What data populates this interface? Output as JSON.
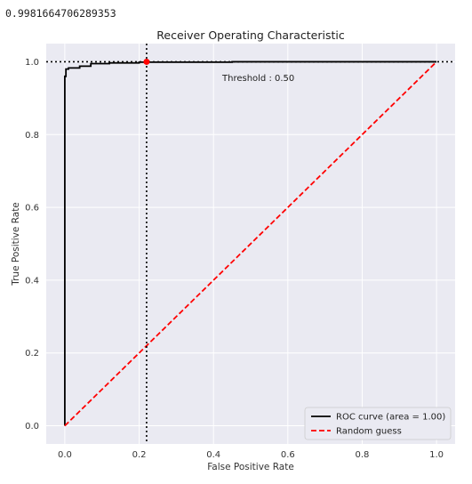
{
  "output": {
    "auc_printout": "0.9981664706289353"
  },
  "chart_data": {
    "type": "line",
    "title": "Receiver Operating Characteristic",
    "xlabel": "False Positive Rate",
    "ylabel": "True Positive Rate",
    "xlim": [
      -0.05,
      1.05
    ],
    "ylim": [
      -0.05,
      1.05
    ],
    "xticks": [
      0.0,
      0.2,
      0.4,
      0.6,
      0.8,
      1.0
    ],
    "yticks": [
      0.0,
      0.2,
      0.4,
      0.6,
      0.8,
      1.0
    ],
    "xtick_labels": [
      "0.0",
      "0.2",
      "0.4",
      "0.6",
      "0.8",
      "1.0"
    ],
    "ytick_labels": [
      "0.0",
      "0.2",
      "0.4",
      "0.6",
      "0.8",
      "1.0"
    ],
    "grid": true,
    "legend_position": "bottom-right",
    "series": [
      {
        "name": "ROC curve (area = 1.00)",
        "color": "#000000",
        "style": "solid",
        "x": [
          0.0,
          0.0,
          0.003,
          0.003,
          0.01,
          0.01,
          0.04,
          0.04,
          0.07,
          0.07,
          0.12,
          0.12,
          0.2,
          0.2,
          0.45,
          0.45,
          1.0
        ],
        "y": [
          0.0,
          0.96,
          0.96,
          0.98,
          0.98,
          0.983,
          0.983,
          0.988,
          0.988,
          0.995,
          0.995,
          0.997,
          0.997,
          0.999,
          0.999,
          1.0,
          1.0
        ]
      },
      {
        "name": "Random guess",
        "color": "#ff0000",
        "style": "dashed",
        "x": [
          0.0,
          1.0
        ],
        "y": [
          0.0,
          1.0
        ]
      }
    ],
    "threshold": {
      "label": "Threshold : 0.50",
      "x": 0.22,
      "y": 1.0,
      "marker_color": "#ff0000"
    }
  }
}
